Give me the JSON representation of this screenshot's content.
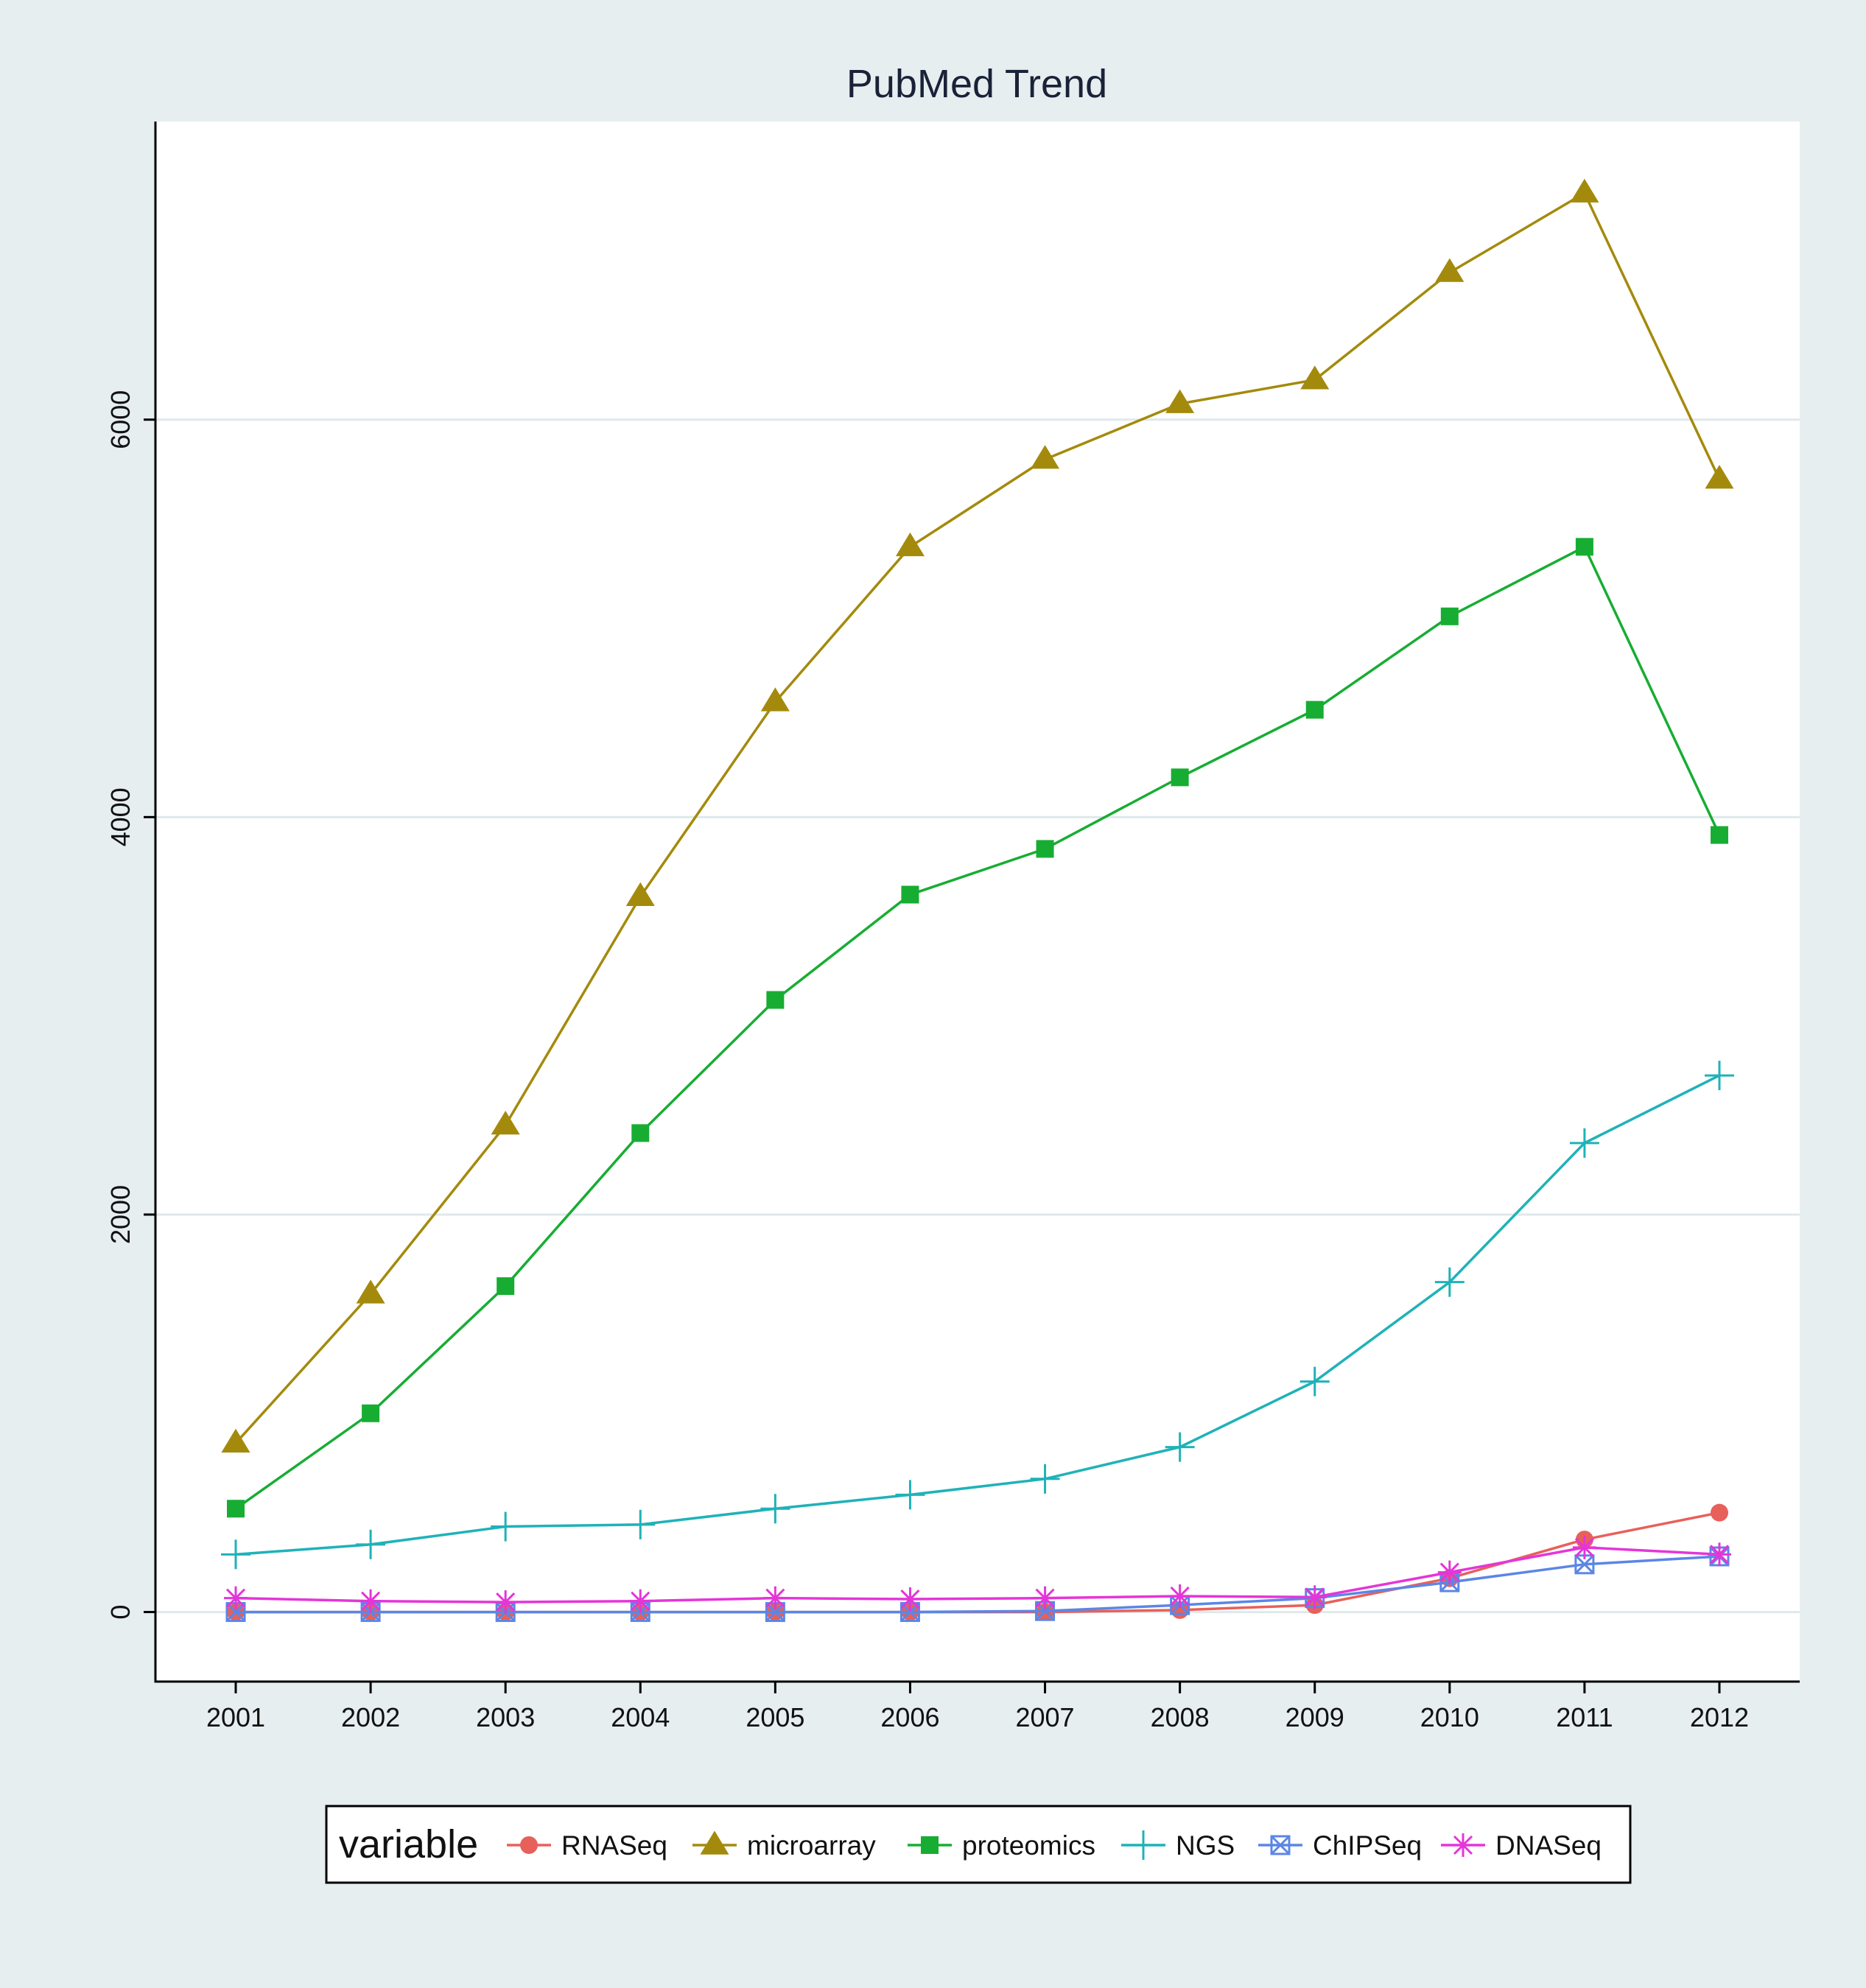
{
  "chart_data": {
    "type": "line",
    "title": "PubMed Trend",
    "xlabel": "",
    "ylabel": "",
    "categories": [
      "2001",
      "2002",
      "2003",
      "2004",
      "2005",
      "2006",
      "2007",
      "2008",
      "2009",
      "2010",
      "2011",
      "2012"
    ],
    "ylim": [
      -350,
      7500
    ],
    "yticks": [
      0,
      2000,
      4000,
      6000
    ],
    "grid": true,
    "legend_title": "variable",
    "legend_position": "bottom",
    "series": [
      {
        "name": "RNASeq",
        "color": "#e8605a",
        "marker": "circle",
        "values": [
          0,
          0,
          0,
          0,
          0,
          0,
          0,
          10,
          35,
          170,
          365,
          500
        ]
      },
      {
        "name": "microarray",
        "color": "#a48a0c",
        "marker": "triangle",
        "values": [
          850,
          1600,
          2450,
          3600,
          4580,
          5360,
          5800,
          6080,
          6200,
          6740,
          7140,
          5700
        ]
      },
      {
        "name": "proteomics",
        "color": "#17ad33",
        "marker": "square",
        "values": [
          520,
          1000,
          1640,
          2410,
          3080,
          3610,
          3840,
          4200,
          4540,
          5010,
          5360,
          3910
        ]
      },
      {
        "name": "NGS",
        "color": "#1fb2b8",
        "marker": "plus",
        "values": [
          290,
          340,
          430,
          440,
          520,
          590,
          670,
          830,
          1160,
          1660,
          2360,
          2700
        ]
      },
      {
        "name": "ChIPSeq",
        "color": "#5b86e6",
        "marker": "square-x",
        "values": [
          0,
          0,
          0,
          0,
          0,
          0,
          5,
          35,
          70,
          150,
          240,
          280
        ]
      },
      {
        "name": "DNASeq",
        "color": "#e535d8",
        "marker": "asterisk",
        "values": [
          70,
          55,
          50,
          55,
          70,
          65,
          70,
          80,
          75,
          200,
          325,
          290
        ]
      }
    ]
  }
}
